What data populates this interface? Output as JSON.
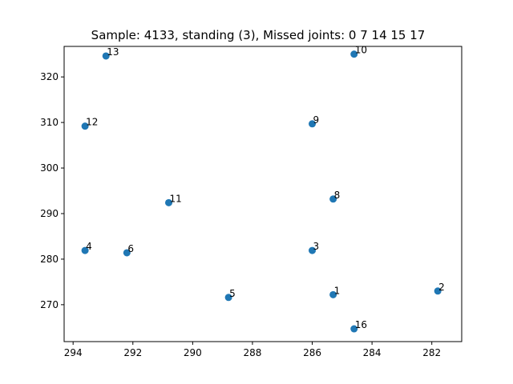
{
  "chart_data": {
    "type": "scatter",
    "title": "Sample: 4133, standing (3), Missed joints: 0  7  14  15  17",
    "xlabel": "",
    "ylabel": "",
    "xlim": [
      294.3,
      281.0
    ],
    "ylim": [
      326.7,
      261.9
    ],
    "x_inverted": true,
    "y_inverted": true,
    "grid": false,
    "marker_color": "#1f77b4",
    "x_ticks": [
      294,
      292,
      290,
      288,
      286,
      284,
      282
    ],
    "y_ticks": [
      270,
      280,
      290,
      300,
      310,
      320
    ],
    "points": [
      {
        "label": "1",
        "x": 285.3,
        "y": 272.2
      },
      {
        "label": "2",
        "x": 281.8,
        "y": 273.0
      },
      {
        "label": "3",
        "x": 286.0,
        "y": 281.9
      },
      {
        "label": "4",
        "x": 293.6,
        "y": 281.9
      },
      {
        "label": "5",
        "x": 288.8,
        "y": 271.6
      },
      {
        "label": "6",
        "x": 292.2,
        "y": 281.4
      },
      {
        "label": "8",
        "x": 285.3,
        "y": 293.2
      },
      {
        "label": "9",
        "x": 286.0,
        "y": 309.7
      },
      {
        "label": "10",
        "x": 284.6,
        "y": 325.0
      },
      {
        "label": "11",
        "x": 290.8,
        "y": 292.4
      },
      {
        "label": "12",
        "x": 293.6,
        "y": 309.2
      },
      {
        "label": "13",
        "x": 292.9,
        "y": 324.6
      },
      {
        "label": "16",
        "x": 284.6,
        "y": 264.7
      }
    ]
  }
}
